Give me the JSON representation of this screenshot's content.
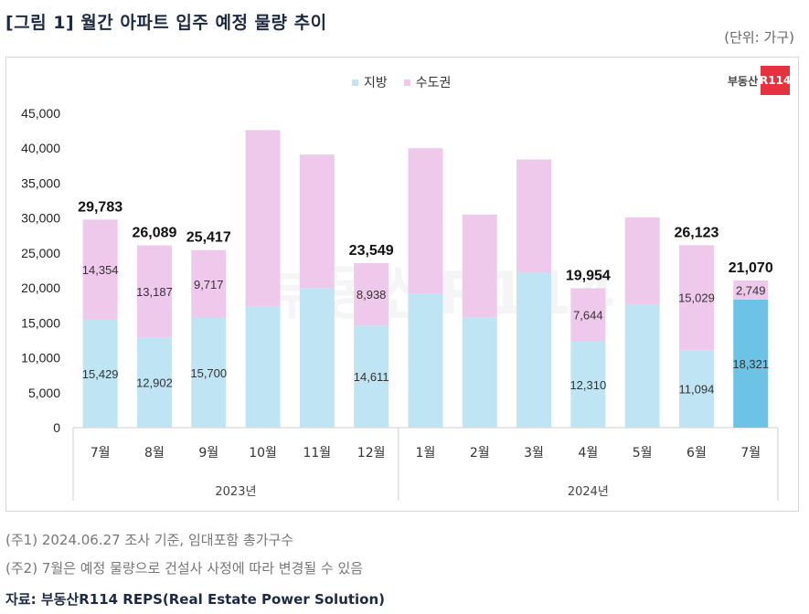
{
  "title": "[그림 1] 월간 아파트 입주 예정 물량 추이",
  "unit": "(단위: 가구)",
  "logo": {
    "text": "부동산",
    "box": "R114"
  },
  "watermark": "부동산R114",
  "notes": [
    "(주1) 2024.06.27 조사 기준, 임대포함 총가구수",
    "(주2) 7월은 예정 물량으로 건설사 사정에 따라 변경될 수 있음"
  ],
  "source": "자료: 부동산R114 REPS(Real Estate Power Solution)",
  "colors": {
    "local": "#bfe4f3",
    "capital": "#efc9ec",
    "highlight": "#6cc3e6"
  },
  "chart_data": {
    "type": "bar",
    "stacked": true,
    "categories": [
      "7월",
      "8월",
      "9월",
      "10월",
      "11월",
      "12월",
      "1월",
      "2월",
      "3월",
      "4월",
      "5월",
      "6월",
      "7월"
    ],
    "groups": [
      {
        "label": "2023년",
        "from": 0,
        "to": 5
      },
      {
        "label": "2024년",
        "from": 6,
        "to": 12
      }
    ],
    "series": [
      {
        "name": "지방",
        "values": [
          15429,
          12902,
          15700,
          17300,
          20000,
          14611,
          19200,
          15800,
          22200,
          12310,
          17700,
          11094,
          18321
        ],
        "labels": [
          "15,429",
          "12,902",
          "15,700",
          "",
          "",
          "14,611",
          "",
          "",
          "",
          "12,310",
          "",
          "11,094",
          "18,321"
        ]
      },
      {
        "name": "수도권",
        "values": [
          14354,
          13187,
          9717,
          25300,
          19100,
          8938,
          20800,
          14700,
          16200,
          7644,
          12400,
          15029,
          2749
        ],
        "labels": [
          "14,354",
          "13,187",
          "9,717",
          "",
          "",
          "8,938",
          "",
          "",
          "",
          "7,644",
          "",
          "15,029",
          "2,749"
        ]
      }
    ],
    "totals": [
      "29,783",
      "26,089",
      "25,417",
      "",
      "",
      "23,549",
      "",
      "",
      "",
      "19,954",
      "",
      "26,123",
      "21,070"
    ],
    "highlight_index": 12,
    "ylim": [
      0,
      45000
    ],
    "yticks": [
      "0",
      "5,000",
      "10,000",
      "15,000",
      "20,000",
      "25,000",
      "30,000",
      "35,000",
      "40,000",
      "45,000"
    ],
    "legend": "top-center"
  }
}
